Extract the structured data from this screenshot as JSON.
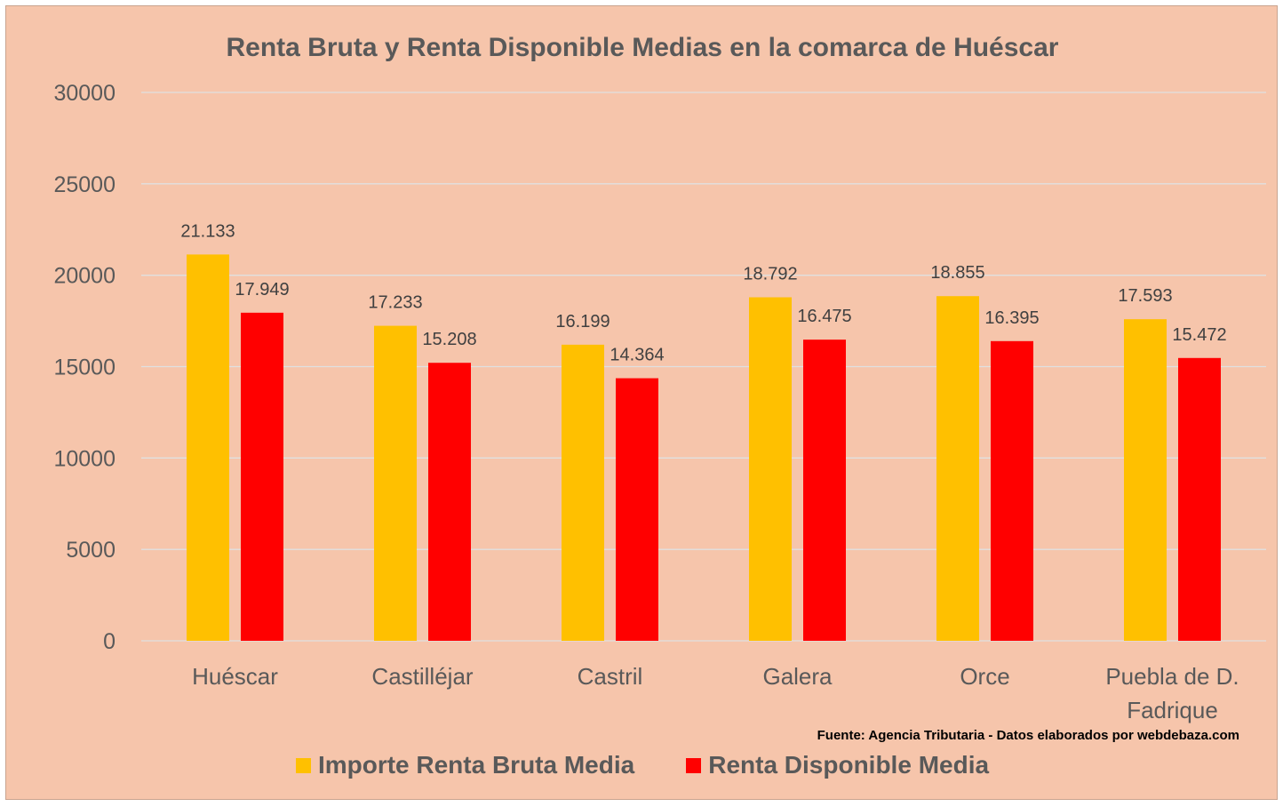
{
  "chart_data": {
    "type": "bar",
    "title": "Renta Bruta y Renta Disponible Medias en la comarca de Huéscar",
    "categories": [
      "Huéscar",
      "Castilléjar",
      "Castril",
      "Galera",
      "Orce",
      "Puebla de D. Fadrique"
    ],
    "series": [
      {
        "name": "Importe Renta Bruta Media",
        "color": "#ffc000",
        "values": [
          21133,
          17233,
          16199,
          18792,
          18855,
          17593
        ],
        "labels": [
          "21.133",
          "17.233",
          "16.199",
          "18.792",
          "18.855",
          "17.593"
        ]
      },
      {
        "name": "Renta Disponible Media",
        "color": "#ff0000",
        "values": [
          17949,
          15208,
          14364,
          16475,
          16395,
          15472
        ],
        "labels": [
          "17.949",
          "15.208",
          "14.364",
          "16.475",
          "16.395",
          "15.472"
        ]
      }
    ],
    "yticks": [
      "0",
      "5000",
      "10000",
      "15000",
      "20000",
      "25000",
      "30000"
    ],
    "ylim": [
      0,
      30000
    ],
    "grid": true,
    "legend": "bottom-center",
    "source_note": "Fuente: Agencia Tributaria - Datos elaborados por webdebaza.com"
  },
  "colors": {
    "background": "#f6c5ab",
    "gridline": "#e0e0e0",
    "text": "#595959"
  }
}
